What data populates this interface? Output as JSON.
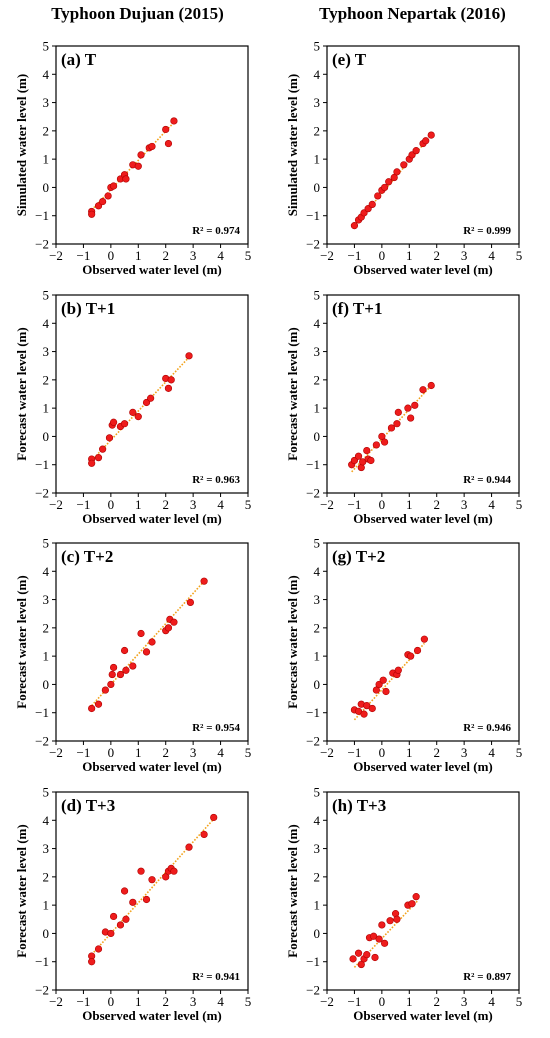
{
  "column_titles": [
    "Typhoon Dujuan (2015)",
    "Typhoon Nepartak (2016)"
  ],
  "colors": {
    "point": "#ee1c1c",
    "point_edge": "#b00000",
    "fit_line": "#f2a21b",
    "axis": "#000000"
  },
  "chart_data": [
    {
      "type": "scatter",
      "title": "(a) T",
      "xlabel": "Observed water level (m)",
      "ylabel": "Simulated water level (m)",
      "xlim": [
        -2,
        5
      ],
      "ylim": [
        -2,
        5
      ],
      "ticks": [
        -2,
        -1,
        0,
        1,
        2,
        3,
        4,
        5
      ],
      "grid": false,
      "annotation": "R² = 0.974",
      "fit_line": [
        [
          -0.7,
          -0.8
        ],
        [
          2.3,
          2.3
        ]
      ],
      "points": [
        [
          -0.7,
          -0.85
        ],
        [
          -0.7,
          -0.95
        ],
        [
          -0.45,
          -0.65
        ],
        [
          -0.3,
          -0.5
        ],
        [
          -0.1,
          -0.3
        ],
        [
          0.0,
          0.0
        ],
        [
          0.1,
          0.05
        ],
        [
          0.35,
          0.3
        ],
        [
          0.5,
          0.45
        ],
        [
          0.55,
          0.3
        ],
        [
          0.8,
          0.8
        ],
        [
          1.0,
          0.75
        ],
        [
          1.1,
          1.15
        ],
        [
          1.4,
          1.4
        ],
        [
          1.5,
          1.45
        ],
        [
          2.0,
          2.05
        ],
        [
          2.1,
          1.55
        ],
        [
          2.3,
          2.35
        ]
      ]
    },
    {
      "type": "scatter",
      "title": "(e) T",
      "xlabel": "Observed water level (m)",
      "ylabel": "Simulated water level (m)",
      "xlim": [
        -2,
        5
      ],
      "ylim": [
        -2,
        5
      ],
      "ticks": [
        -2,
        -1,
        0,
        1,
        2,
        3,
        4,
        5
      ],
      "grid": false,
      "annotation": "R² = 0.999",
      "fit_line": [
        [
          -1.0,
          -1.35
        ],
        [
          1.8,
          1.85
        ]
      ],
      "points": [
        [
          -1.0,
          -1.35
        ],
        [
          -0.85,
          -1.15
        ],
        [
          -0.75,
          -1.05
        ],
        [
          -0.65,
          -0.9
        ],
        [
          -0.5,
          -0.75
        ],
        [
          -0.35,
          -0.6
        ],
        [
          -0.15,
          -0.3
        ],
        [
          0.0,
          -0.1
        ],
        [
          0.1,
          0.0
        ],
        [
          0.25,
          0.2
        ],
        [
          0.45,
          0.35
        ],
        [
          0.55,
          0.55
        ],
        [
          0.8,
          0.8
        ],
        [
          1.0,
          1.0
        ],
        [
          1.1,
          1.15
        ],
        [
          1.25,
          1.3
        ],
        [
          1.5,
          1.55
        ],
        [
          1.6,
          1.65
        ],
        [
          1.8,
          1.85
        ]
      ]
    },
    {
      "type": "scatter",
      "title": "(b) T+1",
      "xlabel": "Observed water level (m)",
      "ylabel": "Forecast water level (m)",
      "xlim": [
        -2,
        5
      ],
      "ylim": [
        -2,
        5
      ],
      "ticks": [
        -2,
        -1,
        0,
        1,
        2,
        3,
        4,
        5
      ],
      "grid": false,
      "annotation": "R² = 0.963",
      "fit_line": [
        [
          -0.7,
          -0.85
        ],
        [
          2.9,
          2.85
        ]
      ],
      "points": [
        [
          -0.7,
          -0.8
        ],
        [
          -0.7,
          -0.95
        ],
        [
          -0.45,
          -0.75
        ],
        [
          -0.3,
          -0.45
        ],
        [
          -0.05,
          -0.05
        ],
        [
          0.05,
          0.4
        ],
        [
          0.1,
          0.5
        ],
        [
          0.35,
          0.35
        ],
        [
          0.5,
          0.45
        ],
        [
          0.8,
          0.85
        ],
        [
          1.0,
          0.7
        ],
        [
          1.3,
          1.2
        ],
        [
          1.45,
          1.35
        ],
        [
          2.0,
          2.05
        ],
        [
          2.1,
          1.7
        ],
        [
          2.2,
          2.0
        ],
        [
          2.85,
          2.85
        ]
      ]
    },
    {
      "type": "scatter",
      "title": "(f) T+1",
      "xlabel": "Observed water level (m)",
      "ylabel": "Forecast water level (m)",
      "xlim": [
        -2,
        5
      ],
      "ylim": [
        -2,
        5
      ],
      "ticks": [
        -2,
        -1,
        0,
        1,
        2,
        3,
        4,
        5
      ],
      "grid": false,
      "annotation": "R² = 0.944",
      "fit_line": [
        [
          -1.1,
          -1.25
        ],
        [
          1.8,
          1.8
        ]
      ],
      "points": [
        [
          -1.1,
          -1.0
        ],
        [
          -1.0,
          -0.85
        ],
        [
          -0.85,
          -0.7
        ],
        [
          -0.75,
          -1.1
        ],
        [
          -0.7,
          -0.9
        ],
        [
          -0.55,
          -0.5
        ],
        [
          -0.5,
          -0.8
        ],
        [
          -0.4,
          -0.85
        ],
        [
          -0.2,
          -0.3
        ],
        [
          0.0,
          0.0
        ],
        [
          0.1,
          -0.2
        ],
        [
          0.35,
          0.3
        ],
        [
          0.55,
          0.45
        ],
        [
          0.6,
          0.85
        ],
        [
          0.95,
          1.0
        ],
        [
          1.05,
          0.65
        ],
        [
          1.2,
          1.1
        ],
        [
          1.5,
          1.65
        ],
        [
          1.8,
          1.8
        ]
      ]
    },
    {
      "type": "scatter",
      "title": "(c) T+2",
      "xlabel": "Observed water level (m)",
      "ylabel": "Forecast water level (m)",
      "xlim": [
        -2,
        5
      ],
      "ylim": [
        -2,
        5
      ],
      "ticks": [
        -2,
        -1,
        0,
        1,
        2,
        3,
        4,
        5
      ],
      "grid": false,
      "annotation": "R² = 0.954",
      "fit_line": [
        [
          -0.7,
          -0.75
        ],
        [
          3.4,
          3.65
        ]
      ],
      "points": [
        [
          -0.7,
          -0.85
        ],
        [
          -0.45,
          -0.7
        ],
        [
          -0.2,
          -0.2
        ],
        [
          0.0,
          0.0
        ],
        [
          0.05,
          0.35
        ],
        [
          0.1,
          0.6
        ],
        [
          0.35,
          0.35
        ],
        [
          0.5,
          1.2
        ],
        [
          0.55,
          0.5
        ],
        [
          0.8,
          0.65
        ],
        [
          1.1,
          1.8
        ],
        [
          1.3,
          1.15
        ],
        [
          1.5,
          1.5
        ],
        [
          2.0,
          1.9
        ],
        [
          2.1,
          2.0
        ],
        [
          2.15,
          2.3
        ],
        [
          2.3,
          2.2
        ],
        [
          2.9,
          2.9
        ],
        [
          3.4,
          3.65
        ]
      ]
    },
    {
      "type": "scatter",
      "title": "(g) T+2",
      "xlabel": "Observed water level (m)",
      "ylabel": "Forecast water level (m)",
      "xlim": [
        -2,
        5
      ],
      "ylim": [
        -2,
        5
      ],
      "ticks": [
        -2,
        -1,
        0,
        1,
        2,
        3,
        4,
        5
      ],
      "grid": false,
      "annotation": "R² = 0.946",
      "fit_line": [
        [
          -1.0,
          -1.25
        ],
        [
          1.55,
          1.45
        ]
      ],
      "points": [
        [
          -1.0,
          -0.9
        ],
        [
          -0.85,
          -0.95
        ],
        [
          -0.75,
          -0.7
        ],
        [
          -0.65,
          -1.05
        ],
        [
          -0.55,
          -0.75
        ],
        [
          -0.35,
          -0.85
        ],
        [
          -0.2,
          -0.2
        ],
        [
          -0.1,
          0.0
        ],
        [
          0.05,
          0.15
        ],
        [
          0.15,
          -0.25
        ],
        [
          0.4,
          0.4
        ],
        [
          0.55,
          0.35
        ],
        [
          0.6,
          0.5
        ],
        [
          0.95,
          1.05
        ],
        [
          1.05,
          1.0
        ],
        [
          1.3,
          1.2
        ],
        [
          1.55,
          1.6
        ]
      ]
    },
    {
      "type": "scatter",
      "title": "(d) T+3",
      "xlabel": "Observed water level (m)",
      "ylabel": "Forecast water level (m)",
      "xlim": [
        -2,
        5
      ],
      "ylim": [
        -2,
        5
      ],
      "ticks": [
        -2,
        -1,
        0,
        1,
        2,
        3,
        4,
        5
      ],
      "grid": false,
      "annotation": "R² = 0.941",
      "fit_line": [
        [
          -0.7,
          -0.75
        ],
        [
          3.8,
          4.1
        ]
      ],
      "points": [
        [
          -0.7,
          -0.8
        ],
        [
          -0.7,
          -1.0
        ],
        [
          -0.45,
          -0.55
        ],
        [
          -0.2,
          0.05
        ],
        [
          0.0,
          0.0
        ],
        [
          0.1,
          0.6
        ],
        [
          0.35,
          0.3
        ],
        [
          0.5,
          1.5
        ],
        [
          0.55,
          0.5
        ],
        [
          0.8,
          1.1
        ],
        [
          1.1,
          2.2
        ],
        [
          1.3,
          1.2
        ],
        [
          1.5,
          1.9
        ],
        [
          2.0,
          2.0
        ],
        [
          2.1,
          2.2
        ],
        [
          2.2,
          2.3
        ],
        [
          2.3,
          2.2
        ],
        [
          2.85,
          3.05
        ],
        [
          3.4,
          3.5
        ],
        [
          3.75,
          4.1
        ]
      ]
    },
    {
      "type": "scatter",
      "title": "(h) T+3",
      "xlabel": "Observed water level (m)",
      "ylabel": "Forecast water level (m)",
      "xlim": [
        -2,
        5
      ],
      "ylim": [
        -2,
        5
      ],
      "ticks": [
        -2,
        -1,
        0,
        1,
        2,
        3,
        4,
        5
      ],
      "grid": false,
      "annotation": "R² = 0.897",
      "fit_line": [
        [
          -1.0,
          -1.2
        ],
        [
          1.3,
          1.15
        ]
      ],
      "points": [
        [
          -1.05,
          -0.9
        ],
        [
          -0.85,
          -0.7
        ],
        [
          -0.75,
          -1.1
        ],
        [
          -0.65,
          -0.9
        ],
        [
          -0.55,
          -0.75
        ],
        [
          -0.45,
          -0.15
        ],
        [
          -0.3,
          -0.1
        ],
        [
          -0.25,
          -0.85
        ],
        [
          -0.1,
          -0.2
        ],
        [
          0.0,
          0.3
        ],
        [
          0.1,
          -0.35
        ],
        [
          0.3,
          0.45
        ],
        [
          0.5,
          0.7
        ],
        [
          0.55,
          0.5
        ],
        [
          0.95,
          1.0
        ],
        [
          1.1,
          1.05
        ],
        [
          1.25,
          1.3
        ]
      ]
    }
  ]
}
